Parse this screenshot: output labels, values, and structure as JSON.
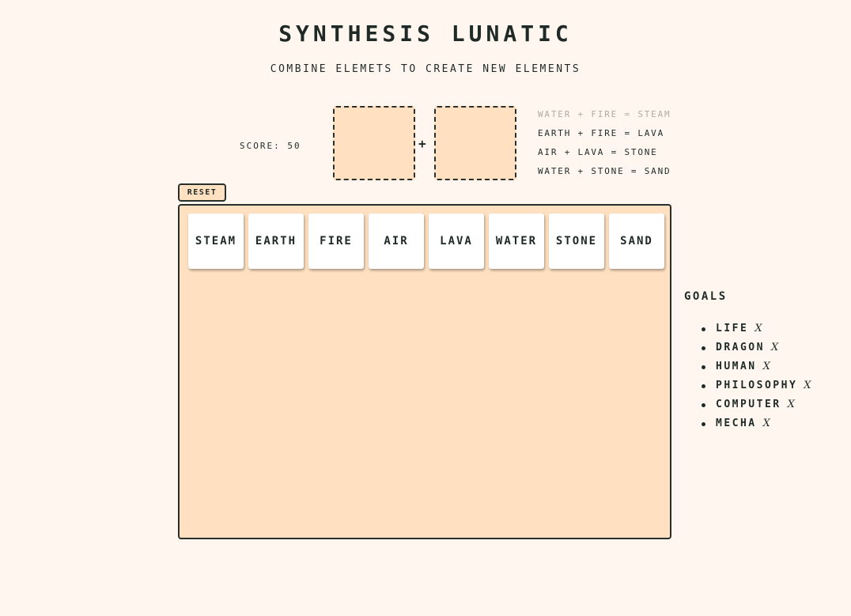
{
  "title": "SYNTHESIS LUNATIC",
  "subtitle": "COMBINE ELEMETS TO CREATE NEW ELEMENTS",
  "score_text": "SCORE: 50",
  "combine": {
    "plus": "+"
  },
  "recipes": [
    {
      "text": "WATER + FIRE = STEAM",
      "faded": true
    },
    {
      "text": "EARTH + FIRE = LAVA",
      "faded": false
    },
    {
      "text": "AIR + LAVA = STONE",
      "faded": false
    },
    {
      "text": "WATER + STONE = SAND",
      "faded": false
    }
  ],
  "reset_label": "RESET",
  "elements": [
    "STEAM",
    "EARTH",
    "FIRE",
    "AIR",
    "LAVA",
    "WATER",
    "STONE",
    "SAND"
  ],
  "goals_title": "GOALS",
  "goals": [
    {
      "name": "LIFE",
      "status": "X"
    },
    {
      "name": "DRAGON",
      "status": "X"
    },
    {
      "name": "HUMAN",
      "status": "X"
    },
    {
      "name": "PHILOSOPHY",
      "status": "X"
    },
    {
      "name": "COMPUTER",
      "status": "X"
    },
    {
      "name": "MECHA",
      "status": "X"
    }
  ],
  "colors": {
    "background": "#fff6ef",
    "panel": "#ffe1c2",
    "ink": "#1f2a26",
    "faded_text": "#b3aaa3"
  }
}
